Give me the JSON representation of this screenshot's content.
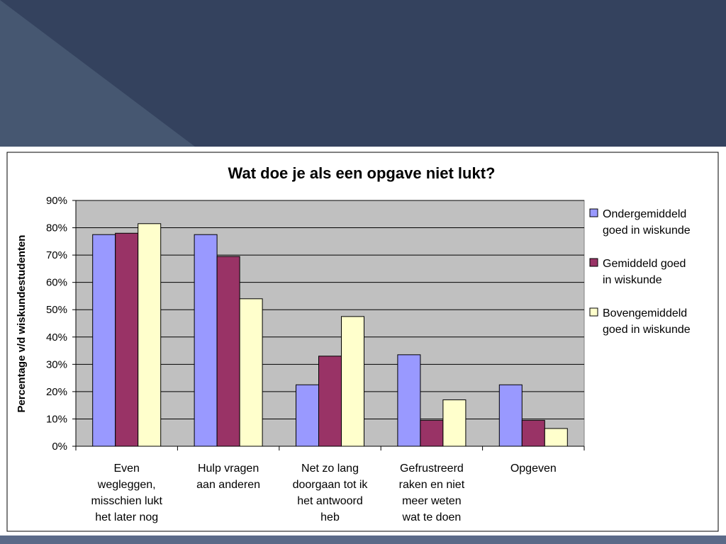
{
  "colors": {
    "slide_bg": "#34425e",
    "slide_bg_light": "#4a5a74",
    "bottom_band": "#5b6a88"
  },
  "chart_data": {
    "type": "bar",
    "title": "Wat doe je als een opgave niet lukt?",
    "xlabel": "",
    "ylabel": "Percentage v/d wiskundestudenten",
    "ylim": [
      0,
      90
    ],
    "y_ticks": [
      "0%",
      "10%",
      "20%",
      "30%",
      "40%",
      "50%",
      "60%",
      "70%",
      "80%",
      "90%"
    ],
    "grid": true,
    "legend_position": "right",
    "categories": [
      [
        "Even",
        "wegleggen,",
        "misschien lukt",
        "het later nog"
      ],
      [
        "Hulp vragen",
        "aan anderen"
      ],
      [
        "Net zo lang",
        "doorgaan tot ik",
        "het antwoord",
        "heb"
      ],
      [
        "Gefrustreerd",
        "raken en niet",
        "meer weten",
        "wat te doen"
      ],
      [
        "Opgeven"
      ]
    ],
    "series": [
      {
        "name": [
          "Ondergemiddeld",
          "goed in wiskunde"
        ],
        "color": "#9999ff",
        "values": [
          77.5,
          77.5,
          22.5,
          33.5,
          22.5
        ]
      },
      {
        "name": [
          "Gemiddeld goed",
          "in wiskunde"
        ],
        "color": "#993366",
        "values": [
          78,
          69.5,
          33,
          9.5,
          9.5
        ]
      },
      {
        "name": [
          "Bovengemiddeld",
          "goed in wiskunde"
        ],
        "color": "#ffffcc",
        "values": [
          81.5,
          54,
          47.5,
          17,
          6.5
        ]
      }
    ]
  }
}
